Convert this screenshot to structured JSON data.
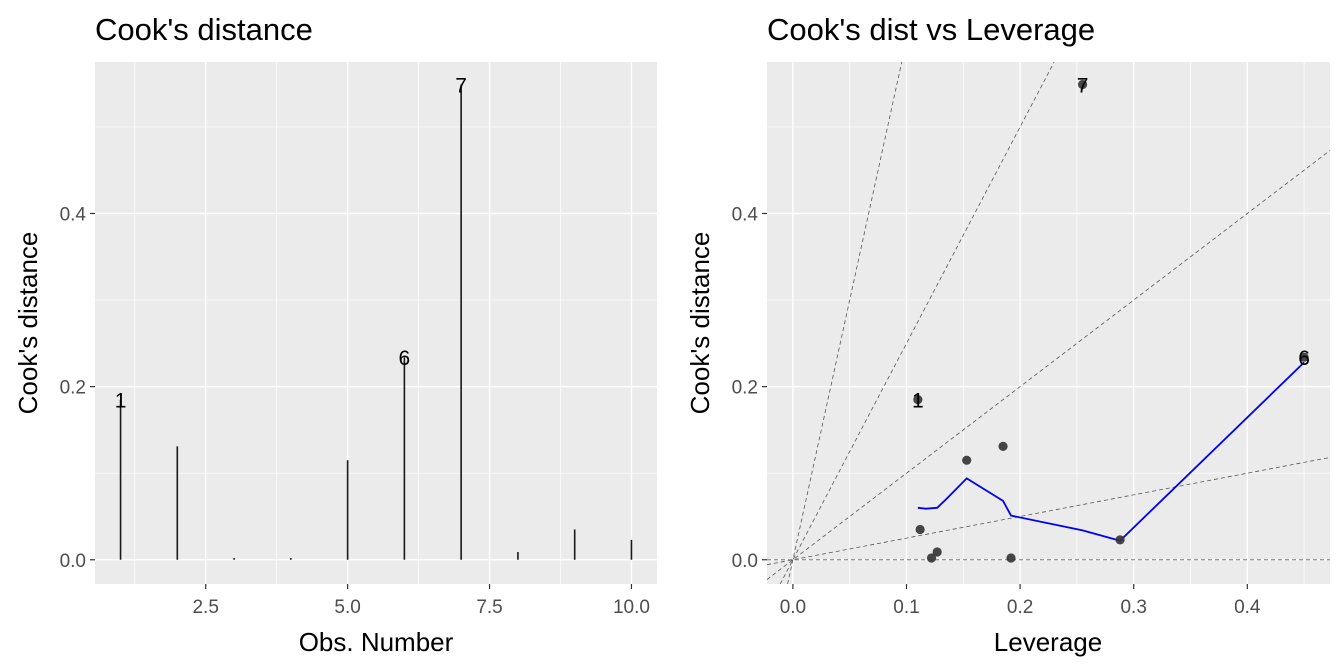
{
  "chart_data": [
    {
      "type": "bar",
      "title": "Cook's distance",
      "xlabel": "Obs. Number",
      "ylabel": "Cook's distance",
      "xlim": [
        0.55,
        10.45
      ],
      "ylim": [
        -0.028,
        0.575
      ],
      "x_ticks": [
        2.5,
        5.0,
        7.5,
        10.0
      ],
      "x_tick_labels": [
        "2.5",
        "5.0",
        "7.5",
        "10.0"
      ],
      "y_ticks": [
        0.0,
        0.2,
        0.4
      ],
      "y_tick_labels": [
        "0.0",
        "0.2",
        "0.4"
      ],
      "x": [
        1,
        2,
        3,
        4,
        5,
        6,
        7,
        8,
        9,
        10
      ],
      "values": [
        0.185,
        0.131,
        0.002,
        0.002,
        0.115,
        0.234,
        0.549,
        0.009,
        0.035,
        0.023
      ],
      "labels": [
        {
          "obs": 1,
          "text": "1"
        },
        {
          "obs": 6,
          "text": "6"
        },
        {
          "obs": 7,
          "text": "7"
        }
      ],
      "grid": true
    },
    {
      "type": "scatter",
      "title": "Cook's dist vs Leverage",
      "xlabel": "Leverage",
      "ylabel": "Cook's distance",
      "xlim": [
        -0.0228,
        0.4728
      ],
      "ylim": [
        -0.028,
        0.575
      ],
      "x_ticks": [
        0.0,
        0.1,
        0.2,
        0.3,
        0.4
      ],
      "x_tick_labels": [
        "0.0",
        "0.1",
        "0.2",
        "0.3",
        "0.4"
      ],
      "y_ticks": [
        0.0,
        0.2,
        0.4
      ],
      "y_tick_labels": [
        "0.0",
        "0.2",
        "0.4"
      ],
      "points": [
        {
          "x": 0.11,
          "y": 0.185
        },
        {
          "x": 0.112,
          "y": 0.035
        },
        {
          "x": 0.122,
          "y": 0.002
        },
        {
          "x": 0.127,
          "y": 0.009
        },
        {
          "x": 0.153,
          "y": 0.115
        },
        {
          "x": 0.185,
          "y": 0.131
        },
        {
          "x": 0.192,
          "y": 0.002
        },
        {
          "x": 0.255,
          "y": 0.549
        },
        {
          "x": 0.288,
          "y": 0.023
        },
        {
          "x": 0.45,
          "y": 0.234
        }
      ],
      "labels": [
        {
          "x": 0.11,
          "y": 0.185,
          "text": "1"
        },
        {
          "x": 0.255,
          "y": 0.549,
          "text": "7"
        },
        {
          "x": 0.45,
          "y": 0.234,
          "text": "6"
        }
      ],
      "smooth_line": {
        "color": "#0000ee",
        "x": [
          0.11,
          0.117,
          0.127,
          0.135,
          0.153,
          0.185,
          0.192,
          0.255,
          0.288,
          0.45
        ],
        "y": [
          0.06,
          0.059,
          0.06,
          0.07,
          0.094,
          0.068,
          0.051,
          0.034,
          0.022,
          0.228
        ]
      },
      "reference_slopes": [
        0.25,
        1.0,
        2.5,
        6.0
      ],
      "zero_line": true,
      "grid": true
    }
  ]
}
